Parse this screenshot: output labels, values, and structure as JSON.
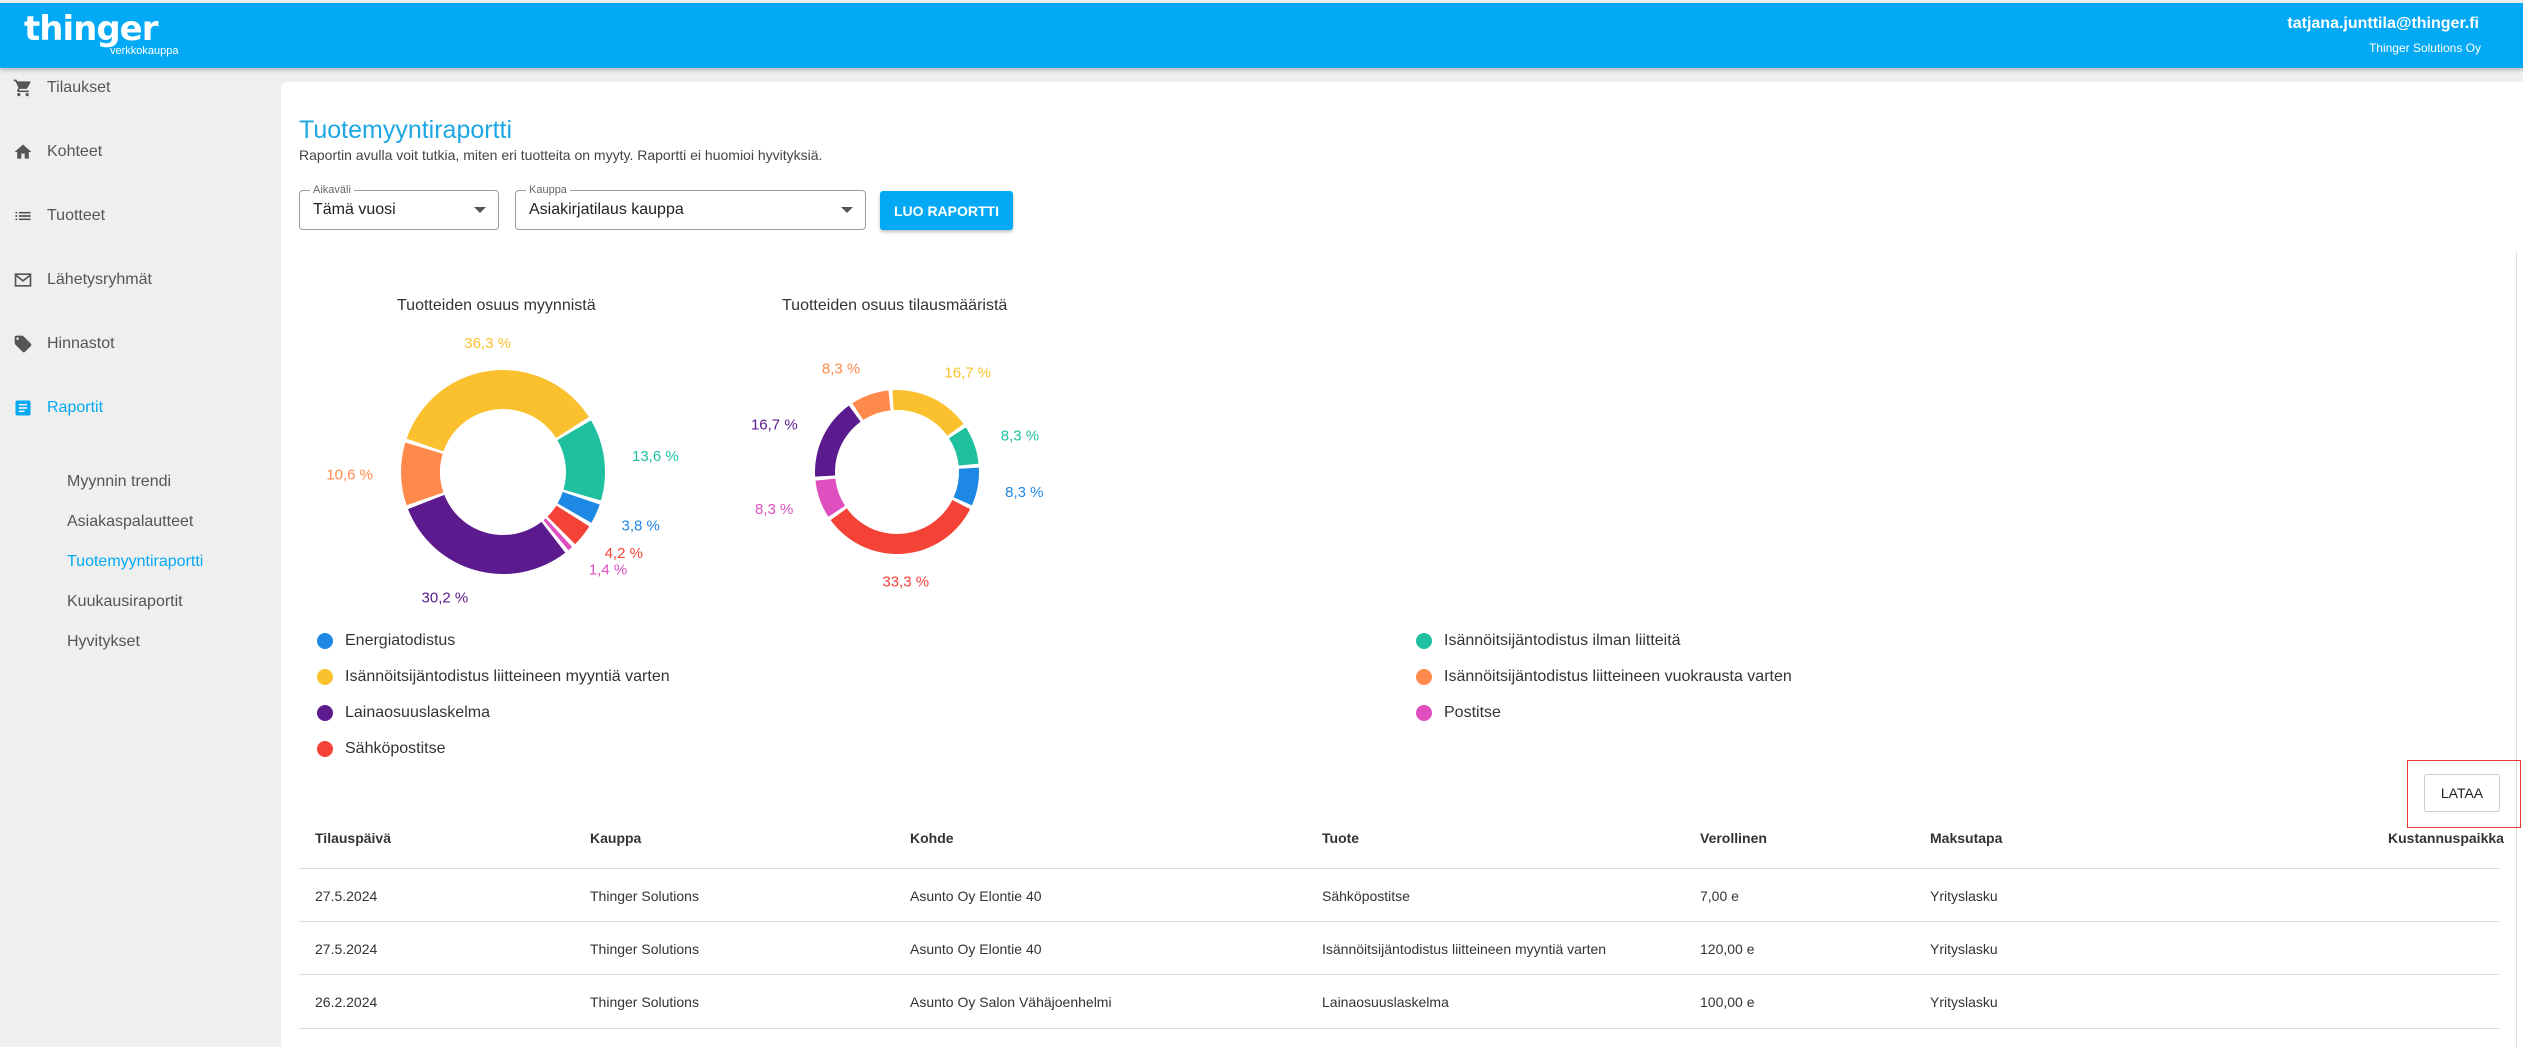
{
  "header": {
    "logo": "thinger",
    "logo_sub": "verkkokauppa",
    "user_email": "tatjana.junttila@thinger.fi",
    "user_org": "Thinger Solutions Oy"
  },
  "sidebar": {
    "items": [
      {
        "label": "Tilaukset",
        "icon": "cart-icon"
      },
      {
        "label": "Kohteet",
        "icon": "home-icon"
      },
      {
        "label": "Tuotteet",
        "icon": "list-icon"
      },
      {
        "label": "Lähetysryhmät",
        "icon": "mail-icon"
      },
      {
        "label": "Hinnastot",
        "icon": "tag-icon"
      },
      {
        "label": "Raportit",
        "icon": "report-icon"
      }
    ],
    "sub_items": [
      "Myynnin trendi",
      "Asiakaspalautteet",
      "Tuotemyyntiraportti",
      "Kuukausiraportit",
      "Hyvitykset"
    ]
  },
  "main": {
    "title": "Tuotemyyntiraportti",
    "description": "Raportin avulla voit tutkia, miten eri tuotteita on myyty. Raportti ei huomioi hyvityksiä.",
    "period": {
      "label": "Aikaväli",
      "value": "Tämä vuosi"
    },
    "store": {
      "label": "Kauppa",
      "value": "Asiakirjatilaus kauppa"
    },
    "generate_button": "LUO RAPORTTI",
    "download_button": "LATAA"
  },
  "colors": {
    "accent": "#03a9f4",
    "energiatodistus": "#1e88e5",
    "isannoitsija_ilman": "#1fc0a0",
    "isannoitsija_myynti": "#fbc02d",
    "isannoitsija_vuokraus": "#ff8a4c",
    "lainaosuus": "#5b1a8e",
    "postitse": "#e04fc0",
    "sahkopostitse": "#f44336"
  },
  "chart_data": [
    {
      "type": "pie",
      "title": "Tuotteiden osuus myynnistä",
      "slices": [
        {
          "name": "Isännöitsijäntodistus ilman liitteitä",
          "value": 13.6,
          "label": "13,6 %"
        },
        {
          "name": "Energiatodistus",
          "value": 3.8,
          "label": "3,8 %"
        },
        {
          "name": "Sähköpostitse",
          "value": 4.2,
          "label": "4,2 %"
        },
        {
          "name": "Postitse",
          "value": 1.4,
          "label": "1,4 %"
        },
        {
          "name": "Lainaosuuslaskelma",
          "value": 30.2,
          "label": "30,2 %"
        },
        {
          "name": "Isännöitsijäntodistus liitteineen vuokrausta varten",
          "value": 10.6,
          "label": "10,6 %"
        },
        {
          "name": "Isännöitsijäntodistus liitteineen myyntiä varten",
          "value": 36.3,
          "label": "36,3 %"
        }
      ]
    },
    {
      "type": "pie",
      "title": "Tuotteiden osuus tilausmääristä",
      "slices": [
        {
          "name": "Isännöitsijäntodistus ilman liitteitä",
          "value": 8.3,
          "label": "8,3 %"
        },
        {
          "name": "Energiatodistus",
          "value": 8.3,
          "label": "8,3 %"
        },
        {
          "name": "Sähköpostitse",
          "value": 33.3,
          "label": "33,3 %"
        },
        {
          "name": "Postitse",
          "value": 8.3,
          "label": "8,3 %"
        },
        {
          "name": "Lainaosuuslaskelma",
          "value": 16.7,
          "label": "16,7 %"
        },
        {
          "name": "Isännöitsijäntodistus liitteineen vuokrausta varten",
          "value": 8.3,
          "label": "8,3 %"
        },
        {
          "name": "Isännöitsijäntodistus liitteineen myyntiä varten",
          "value": 16.7,
          "label": "16,7 %"
        }
      ]
    }
  ],
  "legend": [
    {
      "label": "Energiatodistus",
      "color": "#1e88e5"
    },
    {
      "label": "Isännöitsijäntodistus liitteineen myyntiä varten",
      "color": "#fbc02d"
    },
    {
      "label": "Lainaosuuslaskelma",
      "color": "#5b1a8e"
    },
    {
      "label": "Sähköpostitse",
      "color": "#f44336"
    },
    {
      "label": "Isännöitsijäntodistus ilman liitteitä",
      "color": "#1fc0a0"
    },
    {
      "label": "Isännöitsijäntodistus liitteineen vuokrausta varten",
      "color": "#ff8a4c"
    },
    {
      "label": "Postitse",
      "color": "#e04fc0"
    }
  ],
  "table": {
    "columns": [
      "Tilauspäivä",
      "Kauppa",
      "Kohde",
      "Tuote",
      "Verollinen",
      "Maksutapa",
      "Kustannuspaikka"
    ],
    "rows": [
      [
        "27.5.2024",
        "Thinger Solutions",
        "Asunto Oy Elontie 40",
        "Sähköpostitse",
        "7,00 e",
        "Yrityslasku",
        ""
      ],
      [
        "27.5.2024",
        "Thinger Solutions",
        "Asunto Oy Elontie 40",
        "Isännöitsijäntodistus liitteineen myyntiä varten",
        "120,00 e",
        "Yrityslasku",
        ""
      ],
      [
        "26.2.2024",
        "Thinger Solutions",
        "Asunto Oy Salon Vähäjoenhelmi",
        "Lainaosuuslaskelma",
        "100,00 e",
        "Yrityslasku",
        ""
      ]
    ]
  }
}
